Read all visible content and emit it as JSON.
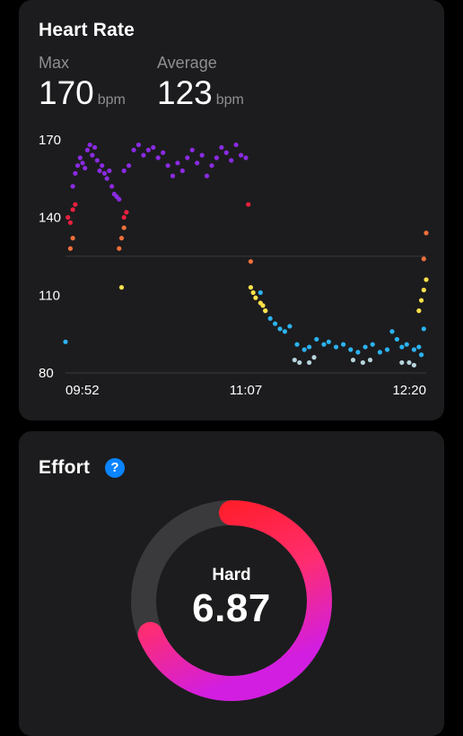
{
  "heart_rate": {
    "title": "Heart Rate",
    "max_label": "Max",
    "max_value": "170",
    "avg_label": "Average",
    "avg_value": "123",
    "unit": "bpm",
    "colors": {
      "grid": "#3a3a3c",
      "axis_text": "#ffffff",
      "zone_purple": "#8a2be2",
      "zone_red": "#e8203f",
      "zone_orange": "#f0703a",
      "zone_yellow": "#ffe14a",
      "zone_blue": "#2bb3f0",
      "zone_gray": "#b8d4dc"
    },
    "chart_data": {
      "type": "scatter",
      "x_ticks": [
        "09:52",
        "11:07",
        "12:20"
      ],
      "y_ticks": [
        170,
        140,
        110,
        80
      ],
      "ylim": [
        80,
        172
      ],
      "xlim": [
        0,
        148
      ],
      "reference_line": 125,
      "series": [
        {
          "zone": "zone_blue",
          "points": [
            [
              0,
              92
            ],
            [
              80,
              111
            ],
            [
              82,
              104
            ],
            [
              84,
              101
            ],
            [
              86,
              99
            ],
            [
              88,
              97
            ],
            [
              90,
              96
            ],
            [
              92,
              98
            ],
            [
              95,
              91
            ],
            [
              98,
              89
            ],
            [
              100,
              90
            ],
            [
              103,
              93
            ],
            [
              106,
              91
            ],
            [
              108,
              92
            ],
            [
              111,
              90
            ],
            [
              114,
              91
            ],
            [
              117,
              89
            ],
            [
              120,
              88
            ],
            [
              123,
              90
            ],
            [
              126,
              91
            ],
            [
              129,
              88
            ],
            [
              132,
              89
            ],
            [
              134,
              96
            ],
            [
              136,
              93
            ],
            [
              138,
              90
            ],
            [
              140,
              91
            ],
            [
              143,
              89
            ],
            [
              145,
              90
            ],
            [
              146,
              87
            ],
            [
              147,
              97
            ]
          ]
        },
        {
          "zone": "zone_gray",
          "points": [
            [
              94,
              85
            ],
            [
              96,
              84
            ],
            [
              100,
              84
            ],
            [
              102,
              86
            ],
            [
              118,
              85
            ],
            [
              122,
              84
            ],
            [
              125,
              85
            ],
            [
              138,
              84
            ],
            [
              141,
              84
            ],
            [
              143,
              83
            ]
          ]
        },
        {
          "zone": "zone_yellow",
          "points": [
            [
              23,
              113
            ],
            [
              76,
              113
            ],
            [
              77,
              111
            ],
            [
              78,
              109
            ],
            [
              80,
              107
            ],
            [
              81,
              106
            ],
            [
              82,
              104
            ],
            [
              148,
              116
            ],
            [
              147,
              112
            ],
            [
              146,
              108
            ],
            [
              145,
              104
            ]
          ]
        },
        {
          "zone": "zone_orange",
          "points": [
            [
              2,
              128
            ],
            [
              3,
              132
            ],
            [
              22,
              128
            ],
            [
              23,
              132
            ],
            [
              24,
              136
            ],
            [
              76,
              123
            ],
            [
              147,
              124
            ],
            [
              148,
              134
            ]
          ]
        },
        {
          "zone": "zone_red",
          "points": [
            [
              1,
              140
            ],
            [
              2,
              138
            ],
            [
              3,
              143
            ],
            [
              4,
              145
            ],
            [
              24,
              140
            ],
            [
              25,
              142
            ],
            [
              75,
              145
            ]
          ]
        },
        {
          "zone": "zone_purple",
          "points": [
            [
              3,
              152
            ],
            [
              4,
              157
            ],
            [
              5,
              160
            ],
            [
              6,
              163
            ],
            [
              7,
              161
            ],
            [
              8,
              159
            ],
            [
              9,
              166
            ],
            [
              10,
              168
            ],
            [
              11,
              164
            ],
            [
              12,
              167
            ],
            [
              13,
              162
            ],
            [
              14,
              158
            ],
            [
              15,
              160
            ],
            [
              16,
              157
            ],
            [
              17,
              155
            ],
            [
              18,
              158
            ],
            [
              19,
              152
            ],
            [
              20,
              149
            ],
            [
              21,
              148
            ],
            [
              22,
              147
            ],
            [
              24,
              158
            ],
            [
              26,
              160
            ],
            [
              28,
              166
            ],
            [
              30,
              168
            ],
            [
              32,
              164
            ],
            [
              34,
              166
            ],
            [
              36,
              167
            ],
            [
              38,
              163
            ],
            [
              40,
              165
            ],
            [
              42,
              160
            ],
            [
              44,
              156
            ],
            [
              46,
              161
            ],
            [
              48,
              158
            ],
            [
              50,
              163
            ],
            [
              52,
              166
            ],
            [
              54,
              161
            ],
            [
              56,
              164
            ],
            [
              58,
              156
            ],
            [
              60,
              160
            ],
            [
              62,
              163
            ],
            [
              64,
              167
            ],
            [
              66,
              165
            ],
            [
              68,
              162
            ],
            [
              70,
              168
            ],
            [
              72,
              164
            ],
            [
              74,
              163
            ]
          ]
        }
      ]
    }
  },
  "effort": {
    "title": "Effort",
    "help_icon": "question-mark-icon",
    "help_symbol": "?",
    "level": "Hard",
    "score": "6.87",
    "scale_max": 10,
    "colors": {
      "track": "#3a3a3c",
      "gradient_start": "#ff1a1a",
      "gradient_mid": "#ff2d6f",
      "gradient_end": "#d21ee0"
    }
  }
}
